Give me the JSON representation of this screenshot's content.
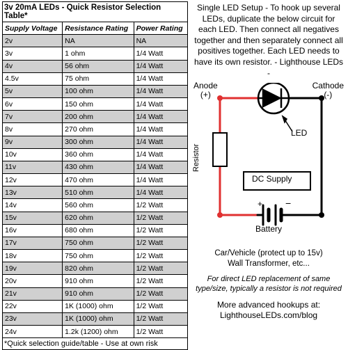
{
  "table": {
    "title": "3v 20mA LEDs - Quick Resistor Selection Table*",
    "columns": [
      "Supply Voltage",
      "Resistance Rating",
      "Power Rating"
    ],
    "rows": [
      [
        "2v",
        "NA",
        "NA"
      ],
      [
        "3v",
        "1 ohm",
        "1/4 Watt"
      ],
      [
        "4v",
        "56 ohm",
        "1/4 Watt"
      ],
      [
        "4.5v",
        "75 ohm",
        "1/4 Watt"
      ],
      [
        "5v",
        "100 ohm",
        "1/4 Watt"
      ],
      [
        "6v",
        "150 ohm",
        "1/4 Watt"
      ],
      [
        "7v",
        "200 ohm",
        "1/4 Watt"
      ],
      [
        "8v",
        "270 ohm",
        "1/4 Watt"
      ],
      [
        "9v",
        "300 ohm",
        "1/4 Watt"
      ],
      [
        "10v",
        "360 ohm",
        "1/4 Watt"
      ],
      [
        "11v",
        "430 ohm",
        "1/4 Watt"
      ],
      [
        "12v",
        "470 ohm",
        "1/4 Watt"
      ],
      [
        "13v",
        "510 ohm",
        "1/4 Watt"
      ],
      [
        "14v",
        "560 ohm",
        "1/2 Watt"
      ],
      [
        "15v",
        "620 ohm",
        "1/2 Watt"
      ],
      [
        "16v",
        "680 ohm",
        "1/2 Watt"
      ],
      [
        "17v",
        "750 ohm",
        "1/2 Watt"
      ],
      [
        "18v",
        "750 ohm",
        "1/2 Watt"
      ],
      [
        "19v",
        "820 ohm",
        "1/2 Watt"
      ],
      [
        "20v",
        "910 ohm",
        "1/2 Watt"
      ],
      [
        "21v",
        "910 ohm",
        "1/2 Watt"
      ],
      [
        "22v",
        "1K (1000) ohm",
        "1/2 Watt"
      ],
      [
        "23v",
        "1K (1000) ohm",
        "1/2 Watt"
      ],
      [
        "24v",
        "1.2k (1200) ohm",
        "1/2 Watt"
      ]
    ],
    "shade_color": "#d0d0d0",
    "footnote": "*Quick selection guide/table - Use at own risk"
  },
  "instructions": "Single LED Setup - To hook up several LEDs, duplicate the below circuit for each LED. Then connect all negatives together and then separately connect all positives together. Each LED needs to have its own resistor. - Lighthouse LEDs -",
  "diagram": {
    "wire_color": "#e03030",
    "black": "#000000",
    "node_fill": "#e03030",
    "labels": {
      "anode": "Anode",
      "plus": "(+)",
      "cathode": "Cathode",
      "minus": "(-)",
      "led": "LED",
      "resistor": "Resistor",
      "dc": "DC Supply"
    }
  },
  "battery_text": "Battery",
  "battery_sub": "Car/Vehicle (protect up to 15v)\nWall Transformer, etc...",
  "italic_note": "For direct LED replacement of same type/size, typically a resistor is not required",
  "more": "More advanced hookups at:",
  "more_url": "LighthouseLEDs.com/blog"
}
